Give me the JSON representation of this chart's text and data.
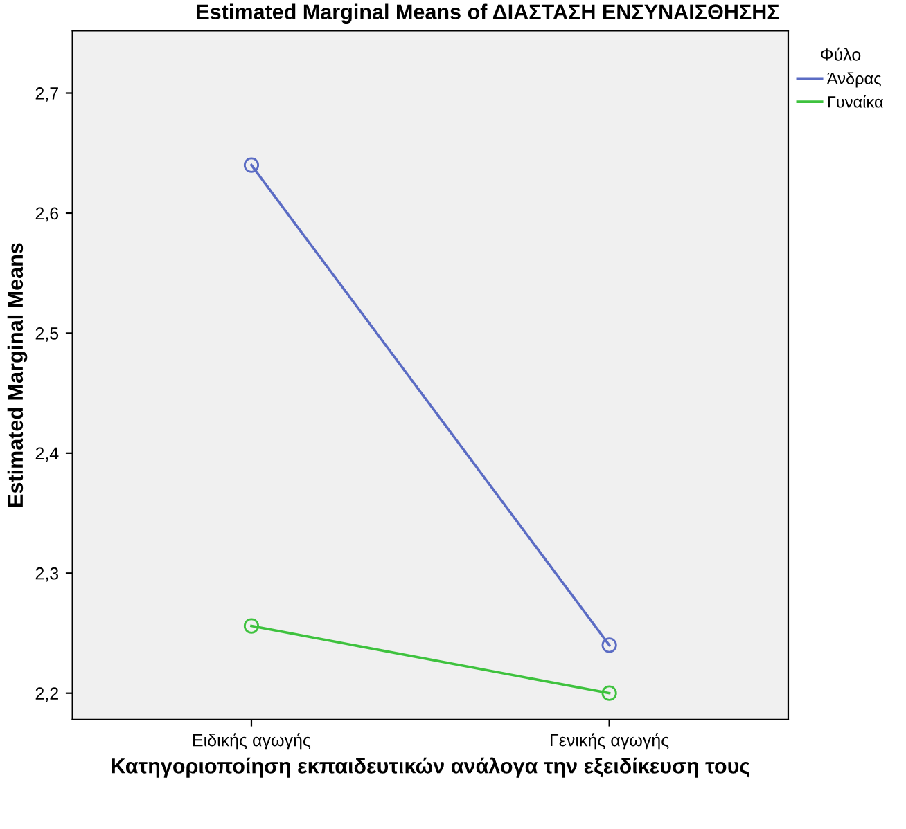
{
  "chart_data": {
    "type": "line",
    "title": "Estimated Marginal Means of ΔΙΑΣΤΑΣΗ ΕΝΣΥΝΑΙΣΘΗΣΗΣ",
    "xlabel": "Κατηγοριοποίηση εκπαιδευτικών ανάλογα την εξειδίκευση τους",
    "ylabel": "Estimated Marginal Means",
    "legend_title": "Φύλο",
    "categories": [
      "Ειδικής αγωγής",
      "Γενικής αγωγής"
    ],
    "series": [
      {
        "name": "Άνδρας",
        "color": "#5b6cc4",
        "values": [
          2.64,
          2.24
        ]
      },
      {
        "name": "Γυναίκα",
        "color": "#3ec23e",
        "values": [
          2.256,
          2.2
        ]
      }
    ],
    "ylim": [
      2.178,
      2.752
    ],
    "yticks": [
      {
        "value": 2.2,
        "label": "2,2"
      },
      {
        "value": 2.3,
        "label": "2,3"
      },
      {
        "value": 2.4,
        "label": "2,4"
      },
      {
        "value": 2.5,
        "label": "2,5"
      },
      {
        "value": 2.6,
        "label": "2,6"
      },
      {
        "value": 2.7,
        "label": "2,7"
      }
    ],
    "grid": false,
    "legend": "top right",
    "marker": "circle",
    "line_style": "solid"
  }
}
